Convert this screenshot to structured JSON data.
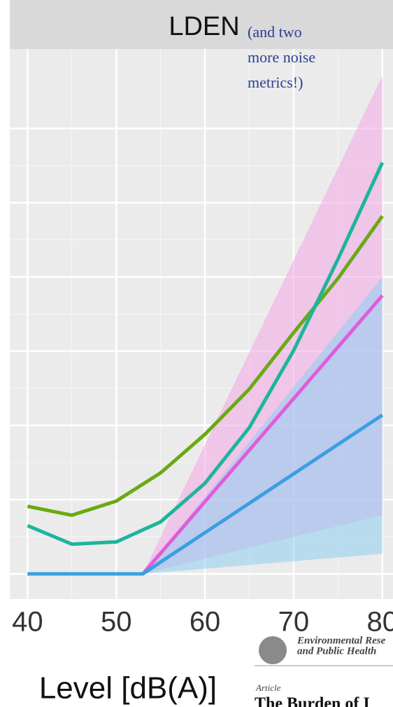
{
  "chart_data": {
    "type": "line",
    "title": "LDEN",
    "annotation": [
      "(and two",
      "more noise",
      "metrics!)"
    ],
    "xlabel": "Level [dB(A)]",
    "xlim": [
      38,
      81.2
    ],
    "xticks": [
      40,
      50,
      60,
      70,
      80
    ],
    "ylim": [
      -0.34,
      7.07
    ],
    "ygrid": [
      0,
      1,
      2,
      3,
      4,
      5,
      6
    ],
    "grid": true,
    "bands": [
      {
        "color": "#f2a6e6",
        "x": [
          53,
          80
        ],
        "lower": [
          0,
          0.79
        ],
        "upper": [
          0,
          6.71
        ]
      },
      {
        "color": "#8ecff0",
        "x": [
          53,
          80
        ],
        "lower": [
          0,
          0.27
        ],
        "upper": [
          0,
          4.0
        ]
      }
    ],
    "series": [
      {
        "color": "#6aaa12",
        "x": [
          40,
          45,
          50,
          55,
          60,
          65,
          70,
          75,
          80
        ],
        "values": [
          0.91,
          0.79,
          0.98,
          1.36,
          1.88,
          2.49,
          3.25,
          3.98,
          4.82
        ]
      },
      {
        "color": "#1db59c",
        "x": [
          40,
          45,
          50,
          55,
          60,
          65,
          70,
          75,
          80
        ],
        "values": [
          0.65,
          0.4,
          0.43,
          0.7,
          1.22,
          1.97,
          3.01,
          4.24,
          5.54
        ]
      },
      {
        "color": "#e05cdc",
        "x": [
          40,
          53,
          80
        ],
        "values": [
          0,
          0,
          3.75
        ]
      },
      {
        "color": "#3aa0e0",
        "x": [
          40,
          53,
          80
        ],
        "values": [
          0,
          0,
          2.14
        ]
      }
    ],
    "journal": {
      "name": [
        "Environmental Rese",
        "and Public Health"
      ],
      "kind": "Article",
      "headline": "The Burden of I"
    }
  }
}
